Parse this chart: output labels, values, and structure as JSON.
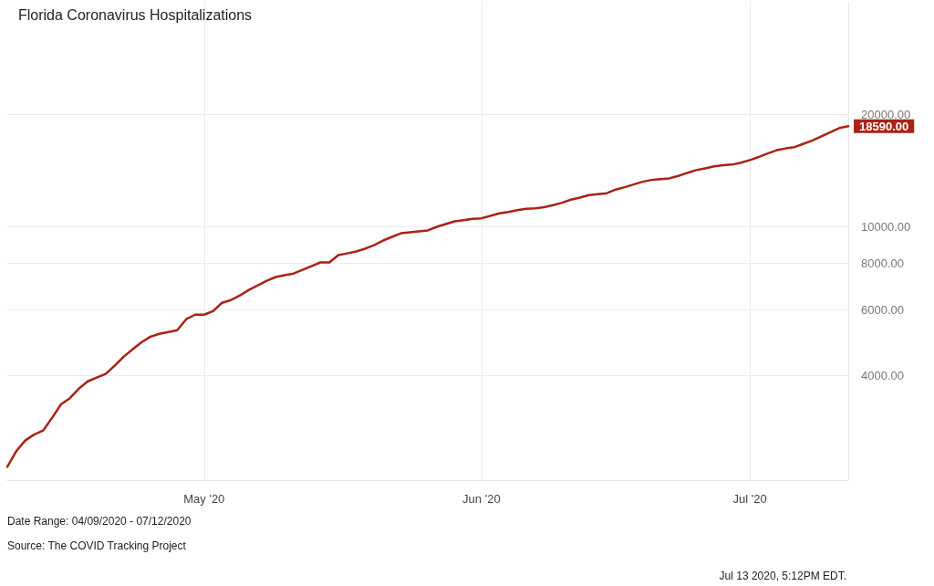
{
  "chart_data": {
    "type": "line",
    "title": "Florida Coronavirus Hospitalizations",
    "x": [
      "2020-04-09",
      "2020-04-10",
      "2020-04-11",
      "2020-04-12",
      "2020-04-13",
      "2020-04-14",
      "2020-04-15",
      "2020-04-16",
      "2020-04-17",
      "2020-04-18",
      "2020-04-19",
      "2020-04-20",
      "2020-04-21",
      "2020-04-22",
      "2020-04-23",
      "2020-04-24",
      "2020-04-25",
      "2020-04-26",
      "2020-04-27",
      "2020-04-28",
      "2020-04-29",
      "2020-04-30",
      "2020-05-01",
      "2020-05-02",
      "2020-05-03",
      "2020-05-04",
      "2020-05-05",
      "2020-05-06",
      "2020-05-07",
      "2020-05-08",
      "2020-05-09",
      "2020-05-10",
      "2020-05-11",
      "2020-05-12",
      "2020-05-13",
      "2020-05-14",
      "2020-05-15",
      "2020-05-16",
      "2020-05-17",
      "2020-05-18",
      "2020-05-19",
      "2020-05-20",
      "2020-05-21",
      "2020-05-22",
      "2020-05-23",
      "2020-05-24",
      "2020-05-25",
      "2020-05-26",
      "2020-05-27",
      "2020-05-28",
      "2020-05-29",
      "2020-05-30",
      "2020-05-31",
      "2020-06-01",
      "2020-06-02",
      "2020-06-03",
      "2020-06-04",
      "2020-06-05",
      "2020-06-06",
      "2020-06-07",
      "2020-06-08",
      "2020-06-09",
      "2020-06-10",
      "2020-06-11",
      "2020-06-12",
      "2020-06-13",
      "2020-06-14",
      "2020-06-15",
      "2020-06-16",
      "2020-06-17",
      "2020-06-18",
      "2020-06-19",
      "2020-06-20",
      "2020-06-21",
      "2020-06-22",
      "2020-06-23",
      "2020-06-24",
      "2020-06-25",
      "2020-06-26",
      "2020-06-27",
      "2020-06-28",
      "2020-06-29",
      "2020-06-30",
      "2020-07-01",
      "2020-07-02",
      "2020-07-03",
      "2020-07-04",
      "2020-07-05",
      "2020-07-06",
      "2020-07-07",
      "2020-07-08",
      "2020-07-09",
      "2020-07-10",
      "2020-07-11",
      "2020-07-12"
    ],
    "series": [
      {
        "color": "#a82315",
        "values": [
          2280,
          2510,
          2680,
          2780,
          2850,
          3080,
          3350,
          3480,
          3690,
          3860,
          3950,
          4040,
          4250,
          4490,
          4700,
          4910,
          5080,
          5170,
          5230,
          5290,
          5660,
          5820,
          5820,
          5950,
          6260,
          6370,
          6550,
          6780,
          6970,
          7170,
          7340,
          7420,
          7500,
          7670,
          7850,
          8030,
          8030,
          8400,
          8490,
          8590,
          8740,
          8930,
          9190,
          9400,
          9610,
          9670,
          9720,
          9780,
          10000,
          10170,
          10340,
          10420,
          10500,
          10540,
          10700,
          10860,
          10960,
          11080,
          11170,
          11210,
          11280,
          11430,
          11600,
          11820,
          11970,
          12160,
          12230,
          12300,
          12580,
          12760,
          12980,
          13200,
          13350,
          13420,
          13480,
          13680,
          13940,
          14180,
          14340,
          14510,
          14610,
          14670,
          14840,
          15090,
          15380,
          15720,
          16030,
          16210,
          16340,
          16680,
          17020,
          17460,
          17900,
          18380,
          18590
        ],
        "value_labels": [
          null,
          null,
          null,
          null,
          null,
          null,
          null,
          null,
          null,
          null,
          null,
          null,
          null,
          null,
          null,
          null,
          null,
          null,
          null,
          null,
          null,
          null,
          null,
          null,
          null,
          null,
          null,
          null,
          null,
          null,
          null,
          null,
          null,
          null,
          null,
          null,
          null,
          null,
          null,
          null,
          null,
          null,
          null,
          null,
          null,
          null,
          null,
          null,
          null,
          null,
          null,
          null,
          null,
          null,
          null,
          null,
          null,
          null,
          null,
          null,
          null,
          null,
          null,
          null,
          null,
          null,
          null,
          null,
          null,
          null,
          null,
          null,
          null,
          null,
          null,
          null,
          null,
          null,
          null,
          null,
          null,
          null,
          null,
          null,
          null,
          null,
          null,
          null,
          null,
          null,
          null,
          null,
          null,
          null,
          "18590.00"
        ]
      }
    ],
    "xlim": [
      "2020-04-09",
      "2020-07-12"
    ],
    "xticks": [
      {
        "value": "2020-05-01",
        "label": "May '20"
      },
      {
        "value": "2020-06-01",
        "label": "Jun '20"
      },
      {
        "value": "2020-07-01",
        "label": "Jul '20"
      }
    ],
    "ylim": [
      2100,
      40000
    ],
    "yticks": [
      {
        "value": 4000,
        "label": "4000.00"
      },
      {
        "value": 6000,
        "label": "6000.00"
      },
      {
        "value": 8000,
        "label": "8000.00"
      },
      {
        "value": 10000,
        "label": "10000.00"
      },
      {
        "value": 20000,
        "label": "20000.00"
      }
    ],
    "log": "y",
    "grid": true,
    "marker": "none",
    "line_style": "solid",
    "annotations": [
      "Date Range: 04/09/2020 - 07/12/2020",
      "Source: The COVID Tracking Project",
      "Jul 13 2020, 5:12PM EDT."
    ]
  }
}
